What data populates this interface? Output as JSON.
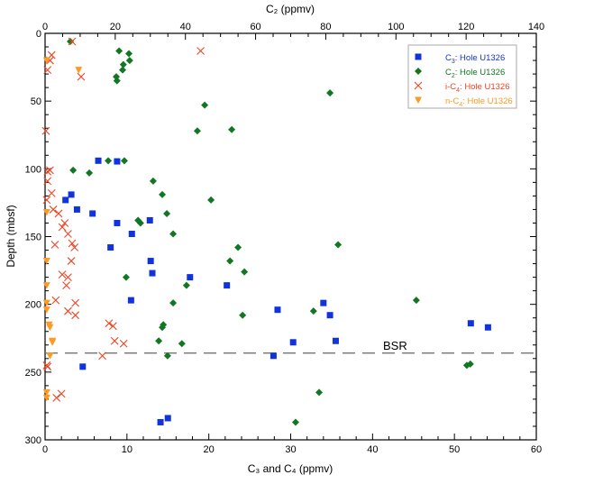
{
  "chart_data": {
    "type": "scatter",
    "xlabel_bottom": "C₃ and C₄ (ppmv)",
    "xlabel_top": "C₂ (ppmv)",
    "ylabel": "Depth (mbsf)",
    "xlim_bottom": [
      0,
      60
    ],
    "xlim_top": [
      0,
      140
    ],
    "ylim": [
      0,
      300
    ],
    "y_inverted": true,
    "bottom_ticks": [
      0,
      10,
      20,
      30,
      40,
      50,
      60
    ],
    "top_ticks": [
      0,
      20,
      40,
      60,
      80,
      100,
      120,
      140
    ],
    "y_ticks": [
      0,
      50,
      100,
      150,
      200,
      250,
      300
    ],
    "legend_position": "top-right",
    "annotation": {
      "text": "BSR",
      "depth": 236
    },
    "series": [
      {
        "name": "C₃: Hole U1326",
        "prefix": "C",
        "sub": "3",
        "suffix": ": Hole U1326",
        "marker": "square",
        "color": "#1133dd",
        "axis": "bottom",
        "points": [
          [
            6.5,
            94
          ],
          [
            8.8,
            94.5
          ],
          [
            3.2,
            119
          ],
          [
            2.5,
            123
          ],
          [
            3.9,
            130
          ],
          [
            5.8,
            133
          ],
          [
            8.8,
            140
          ],
          [
            12.8,
            138
          ],
          [
            10.6,
            148
          ],
          [
            8.0,
            158
          ],
          [
            12.9,
            168
          ],
          [
            13.1,
            177
          ],
          [
            17.7,
            180
          ],
          [
            10.5,
            197
          ],
          [
            22.2,
            186
          ],
          [
            28.4,
            204
          ],
          [
            34.0,
            199
          ],
          [
            34.8,
            208
          ],
          [
            35.5,
            227
          ],
          [
            30.3,
            228
          ],
          [
            27.9,
            238
          ],
          [
            4.6,
            246
          ],
          [
            14.1,
            287
          ],
          [
            15.0,
            284
          ],
          [
            52.0,
            214
          ],
          [
            54.1,
            217
          ]
        ]
      },
      {
        "name": "C₂: Hole U1326",
        "prefix": "C",
        "sub": "2",
        "suffix": ": Hole U1326",
        "marker": "diamond",
        "color": "#117722",
        "axis": "top",
        "points": [
          [
            7.2,
            6
          ],
          [
            21.1,
            13
          ],
          [
            23.9,
            15
          ],
          [
            24.1,
            20
          ],
          [
            22.3,
            23
          ],
          [
            22.1,
            27
          ],
          [
            20.3,
            32
          ],
          [
            20.5,
            35
          ],
          [
            81.2,
            44
          ],
          [
            45.5,
            53
          ],
          [
            43.4,
            72
          ],
          [
            53.2,
            71
          ],
          [
            18.0,
            94
          ],
          [
            22.6,
            94
          ],
          [
            8.0,
            101
          ],
          [
            12.6,
            103
          ],
          [
            30.8,
            109
          ],
          [
            33.4,
            119
          ],
          [
            34.7,
            133
          ],
          [
            47.3,
            123
          ],
          [
            26.5,
            138
          ],
          [
            27.2,
            140
          ],
          [
            36.5,
            148
          ],
          [
            55.0,
            158
          ],
          [
            83.5,
            156
          ],
          [
            52.7,
            168
          ],
          [
            56.8,
            176
          ],
          [
            23.1,
            180
          ],
          [
            40.3,
            186
          ],
          [
            36.5,
            199
          ],
          [
            56.3,
            208
          ],
          [
            76.5,
            205
          ],
          [
            105.8,
            197
          ],
          [
            33.7,
            215
          ],
          [
            33.4,
            217
          ],
          [
            32.4,
            227
          ],
          [
            39.0,
            229
          ],
          [
            34.9,
            238
          ],
          [
            120.2,
            245
          ],
          [
            121.2,
            244
          ],
          [
            71.4,
            287
          ],
          [
            78.1,
            265
          ]
        ]
      },
      {
        "name": "i-C₄: Hole U1326",
        "prefix": "i-C",
        "sub": "4",
        "suffix": ": Hole U1326",
        "marker": "cross",
        "color": "#ee4422",
        "axis": "bottom",
        "points": [
          [
            3.3,
            6
          ],
          [
            19.0,
            13
          ],
          [
            0.8,
            16
          ],
          [
            0.6,
            20
          ],
          [
            0.3,
            27
          ],
          [
            4.4,
            32
          ],
          [
            0.1,
            72
          ],
          [
            0.3,
            102
          ],
          [
            0.6,
            101
          ],
          [
            0.3,
            109
          ],
          [
            0.8,
            118
          ],
          [
            0.2,
            123
          ],
          [
            1.0,
            130
          ],
          [
            1.65,
            133
          ],
          [
            2.4,
            140
          ],
          [
            2.1,
            143
          ],
          [
            2.8,
            148
          ],
          [
            3.3,
            155
          ],
          [
            1.2,
            156
          ],
          [
            3.6,
            158
          ],
          [
            2.1,
            178
          ],
          [
            2.8,
            180
          ],
          [
            2.6,
            186
          ],
          [
            3.2,
            168
          ],
          [
            1.3,
            197
          ],
          [
            3.7,
            199
          ],
          [
            2.8,
            205
          ],
          [
            3.7,
            208
          ],
          [
            7.8,
            214
          ],
          [
            8.3,
            216
          ],
          [
            8.5,
            227
          ],
          [
            9.6,
            229
          ],
          [
            7.0,
            238
          ],
          [
            0.2,
            245
          ],
          [
            0.3,
            246
          ],
          [
            1.4,
            269
          ],
          [
            2.0,
            266
          ]
        ]
      },
      {
        "name": "n-C₄: Hole U1326",
        "prefix": "n-C",
        "sub": "4",
        "suffix": ": Hole U1326",
        "marker": "triangle-down",
        "color": "#ff9922",
        "axis": "bottom",
        "points": [
          [
            0.2,
            20
          ],
          [
            4.1,
            27
          ],
          [
            0.2,
            132
          ],
          [
            0.2,
            168
          ],
          [
            0.2,
            186
          ],
          [
            0.2,
            199
          ],
          [
            0.2,
            204
          ],
          [
            0.5,
            215
          ],
          [
            0.6,
            217
          ],
          [
            0.9,
            227
          ],
          [
            0.9,
            228
          ],
          [
            0.6,
            238
          ],
          [
            0.2,
            265
          ],
          [
            0.2,
            269
          ]
        ]
      }
    ]
  }
}
